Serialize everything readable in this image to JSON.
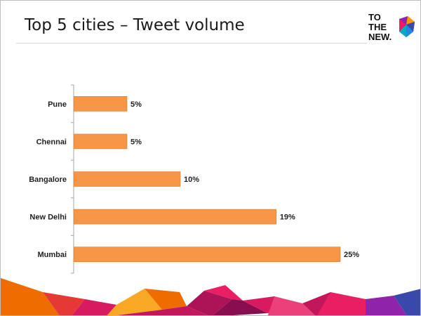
{
  "slide": {
    "title": "Top 5 cities – Tweet volume",
    "logo_lines": [
      "TO",
      "THE",
      "NEW."
    ]
  },
  "colors": {
    "bar": "#f79646",
    "bar_edge": "#e07b2b",
    "axis": "#a6a6a6"
  },
  "chart_data": {
    "type": "bar",
    "orientation": "horizontal",
    "title": "Top 5 cities – Tweet volume",
    "categories": [
      "Pune",
      "Chennai",
      "Bangalore",
      "New Delhi",
      "Mumbai"
    ],
    "values": [
      5,
      5,
      10,
      19,
      25
    ],
    "value_labels": [
      "5%",
      "5%",
      "10%",
      "19%",
      "25%"
    ],
    "xlim": [
      0,
      30
    ],
    "xlabel": "",
    "ylabel": "",
    "grid": false,
    "legend": "none"
  }
}
